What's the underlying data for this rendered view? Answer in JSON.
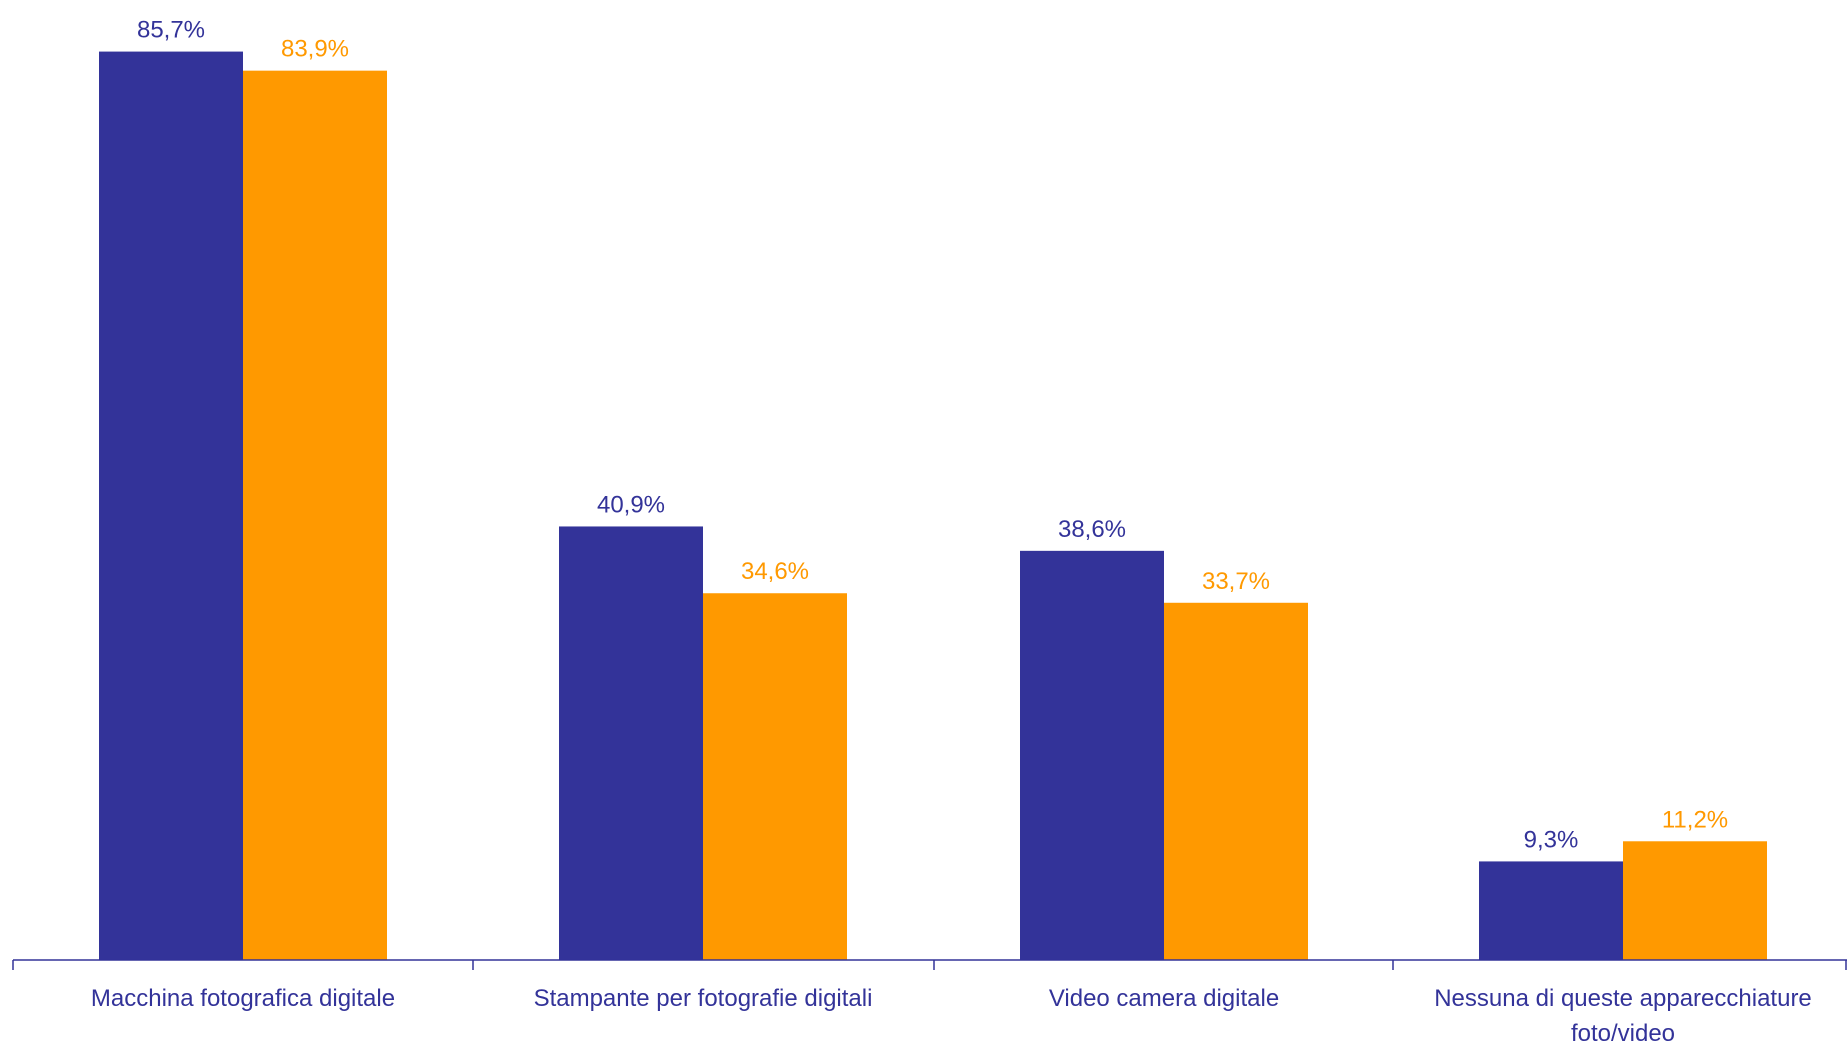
{
  "chart_data": {
    "type": "bar",
    "categories": [
      [
        "Macchina fotografica digitale"
      ],
      [
        "Stampante per fotografie digitali"
      ],
      [
        "Video camera digitale"
      ],
      [
        "Nessuna di queste apparecchiature",
        "foto/video"
      ]
    ],
    "series": [
      {
        "color": "#333399",
        "values": [
          85.7,
          40.9,
          38.6,
          9.3
        ],
        "labels": [
          "85,7%",
          "40,9%",
          "38,6%",
          "9,3%"
        ]
      },
      {
        "color": "#FF9900",
        "values": [
          83.9,
          34.6,
          33.7,
          11.2
        ],
        "labels": [
          "83,9%",
          "34,6%",
          "33,7%",
          "11,2%"
        ]
      }
    ],
    "ylim": [
      0,
      90
    ],
    "grid": false,
    "legend": "none",
    "axis_color": "#333399",
    "category_label_color": "#333399"
  }
}
